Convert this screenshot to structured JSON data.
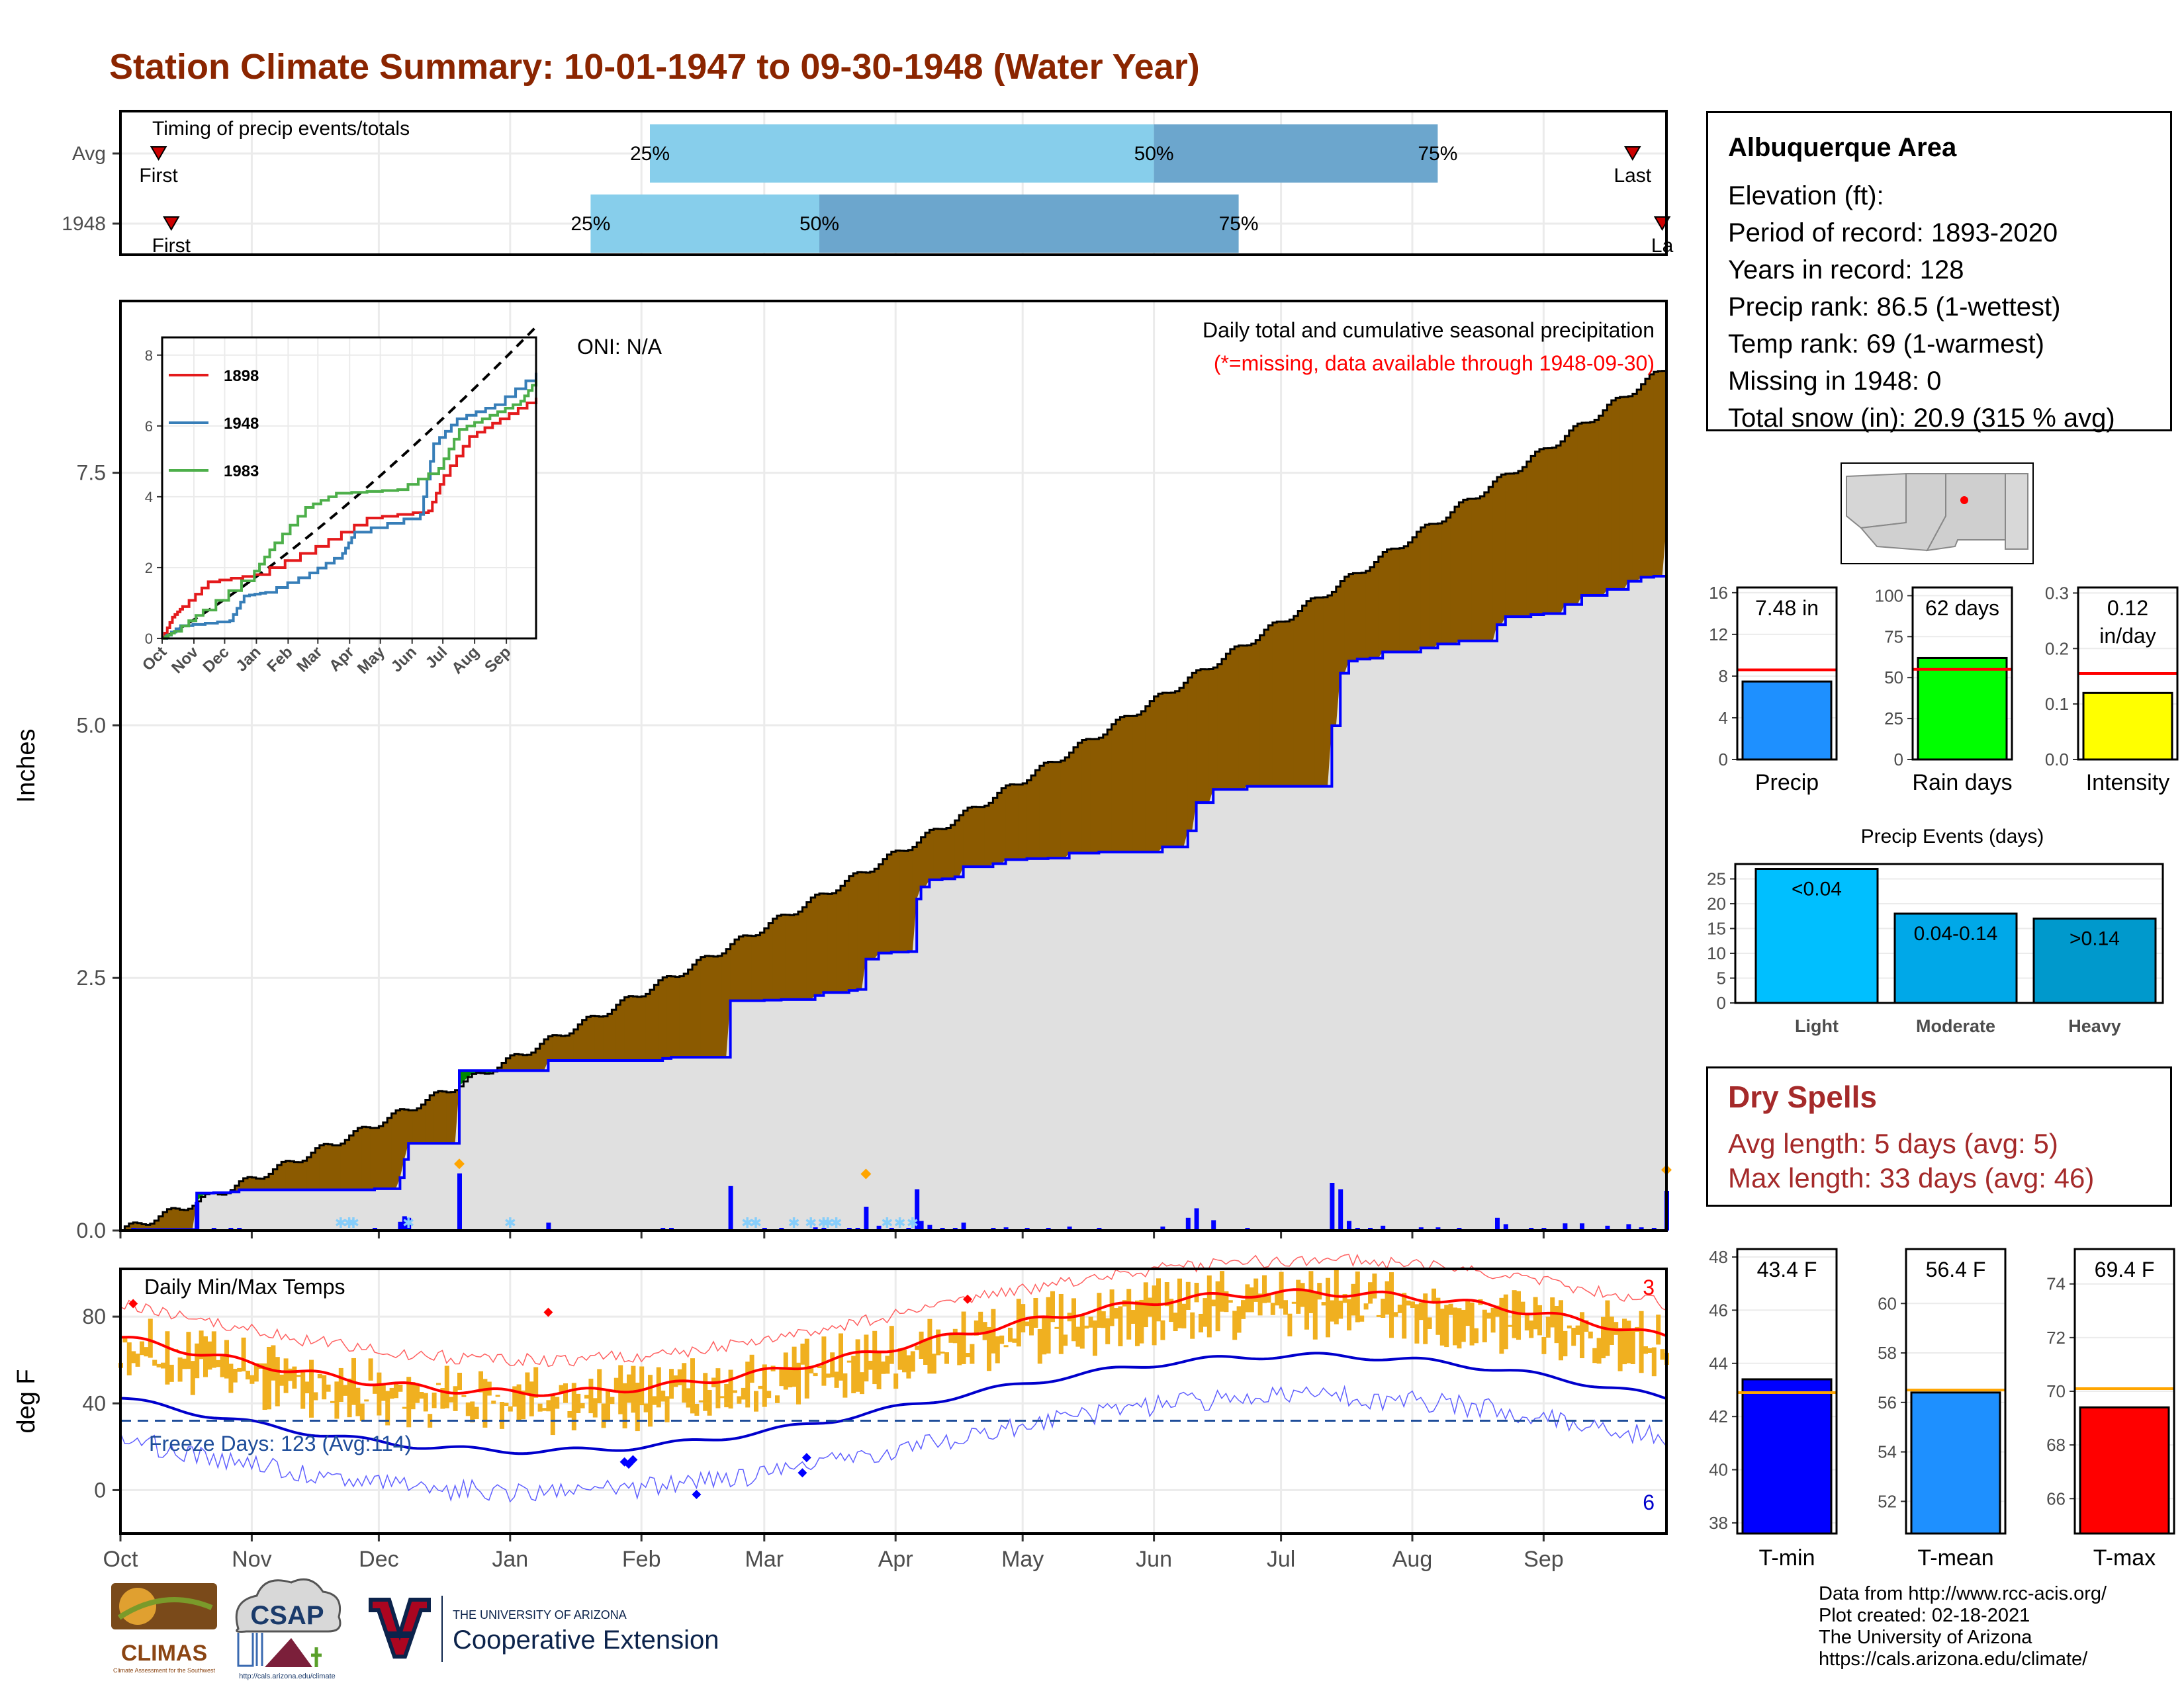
{
  "title": "Station Climate Summary: 10-01-1947 to 09-30-1948 (Water Year)",
  "timing": {
    "label": "Timing of precip events/totals",
    "rows": [
      {
        "name": "Avg",
        "first_label": "First",
        "last_label": "Last",
        "pct_25": "25%",
        "pct_50": "50%",
        "pct_75": "75%",
        "first_day": 9,
        "last_day": 357,
        "p25_day": 125,
        "p50_day": 244,
        "p75_day": 311
      },
      {
        "name": "1948",
        "first_label": "First",
        "last_label": "La",
        "pct_25": "25%",
        "pct_50": "50%",
        "pct_75": "75%",
        "first_day": 12,
        "last_day": 364,
        "p25_day": 111,
        "p50_day": 165,
        "p75_day": 264
      }
    ],
    "colors": {
      "outer": "#87ceeb",
      "inner": "#6ca6cd",
      "marker": "#cc0000"
    }
  },
  "precip": {
    "ylabel": "Inches",
    "oni": "ONI: N/A",
    "subtitle": "Daily total and cumulative seasonal precipitation",
    "missing_note": "(*=missing, data available through 1948-09-30)",
    "y_ticks": [
      "0.0",
      "2.5",
      "5.0",
      "7.5"
    ],
    "ylim": [
      0,
      9.2
    ],
    "colors": {
      "above": "#8b5a00",
      "below": "#008b00",
      "area": "#e0e0e0",
      "line": "#0000ff",
      "bars": "#0000ff"
    }
  },
  "inset": {
    "y_ticks": [
      "0",
      "2",
      "4",
      "6",
      "8"
    ],
    "x_ticks": [
      "Oct",
      "Nov",
      "Dec",
      "Jan",
      "Feb",
      "Mar",
      "Apr",
      "May",
      "Jun",
      "Jul",
      "Aug",
      "Sep"
    ],
    "ylim": [
      0,
      8.5
    ],
    "legend": [
      {
        "name": "1898",
        "color": "#e41a1c"
      },
      {
        "name": "1948",
        "color": "#377eb8"
      },
      {
        "name": "1983",
        "color": "#4daf4a"
      }
    ]
  },
  "temps": {
    "label": "Daily Min/Max Temps",
    "ylabel": "deg F",
    "y_ticks": [
      "0",
      "40",
      "80"
    ],
    "ylim": [
      -20,
      102
    ],
    "freeze": "Freeze Days: 123 (Avg:114)",
    "freeze_line": 32,
    "count_hot": "3",
    "count_cold": "6",
    "x_ticks": [
      "Oct",
      "Nov",
      "Dec",
      "Jan",
      "Feb",
      "Mar",
      "Apr",
      "May",
      "Jun",
      "Jul",
      "Aug",
      "Sep"
    ]
  },
  "info": {
    "heading": "Albuquerque Area",
    "lines": [
      "Elevation (ft):",
      "Period of record: 1893-2020",
      "Years in record: 128",
      "Precip rank: 86.5 (1-wettest)",
      "Temp rank: 69 (1-warmest)",
      "Missing in 1948: 0",
      "Total snow (in): 20.9 (315 % avg)"
    ]
  },
  "summary_bars": [
    {
      "name": "Precip",
      "value_label": "7.48 in",
      "value": 7.48,
      "avg": 8.6,
      "ymax": 16.5,
      "ticks": [
        "0",
        "4",
        "8",
        "12",
        "16"
      ],
      "tick_values": [
        0,
        4,
        8,
        12,
        16
      ],
      "color": "#1e90ff"
    },
    {
      "name": "Rain days",
      "value_label": "62 days",
      "value": 62,
      "avg": 55,
      "ymax": 105,
      "ticks": [
        "0",
        "25",
        "50",
        "75",
        "100"
      ],
      "tick_values": [
        0,
        25,
        50,
        75,
        100
      ],
      "color": "#00ff00"
    },
    {
      "name": "Intensity",
      "value_label": "0.12 in/day",
      "value_line1": "0.12",
      "value_line2": "in/day",
      "value": 0.12,
      "avg": 0.155,
      "ymax": 0.31,
      "ticks": [
        "0.0",
        "0.1",
        "0.2",
        "0.3"
      ],
      "tick_values": [
        0,
        0.1,
        0.2,
        0.3
      ],
      "color": "#ffff00"
    }
  ],
  "events": {
    "title": "Precip Events (days)",
    "ticks": [
      "0",
      "5",
      "10",
      "15",
      "20",
      "25"
    ],
    "ymax": 28,
    "bars": [
      {
        "category": "Light",
        "label": "<0.04",
        "value": 27,
        "color": "#00bfff"
      },
      {
        "category": "Moderate",
        "label": "0.04-0.14",
        "value": 18,
        "color": "#00a8e8"
      },
      {
        "category": "Heavy",
        "label": ">0.14",
        "value": 17,
        "color": "#0099cc"
      }
    ]
  },
  "dry_spells": {
    "heading": "Dry Spells",
    "avg_line": "Avg length: 5 days (avg: 5)",
    "max_line": "Max length: 33 days (avg: 46)"
  },
  "temp_bars": [
    {
      "name": "T-min",
      "value_label": "43.4 F",
      "value": 43.4,
      "avg": 42.9,
      "ymin": 37.6,
      "ymax": 48.3,
      "ticks": [
        "38",
        "40",
        "42",
        "44",
        "46",
        "48"
      ],
      "tick_values": [
        38,
        40,
        42,
        44,
        46,
        48
      ],
      "color": "#0000ff"
    },
    {
      "name": "T-mean",
      "value_label": "56.4 F",
      "value": 56.4,
      "avg": 56.5,
      "ymin": 50.7,
      "ymax": 62.2,
      "ticks": [
        "52",
        "54",
        "56",
        "58",
        "60"
      ],
      "tick_values": [
        52,
        54,
        56,
        58,
        60
      ],
      "color": "#1e90ff"
    },
    {
      "name": "T-max",
      "value_label": "69.4 F",
      "value": 69.4,
      "avg": 70.1,
      "ymin": 64.7,
      "ymax": 75.3,
      "ticks": [
        "66",
        "68",
        "70",
        "72",
        "74"
      ],
      "tick_values": [
        66,
        68,
        70,
        72,
        74
      ],
      "color": "#ff0000"
    }
  ],
  "logos": {
    "climas": "CLIMAS",
    "climas_sub": "Climate Assessment for the Southwest",
    "csap": "CSAP",
    "csap_url": "http://cals.arizona.edu/climate",
    "ua_top": "THE UNIVERSITY OF ARIZONA",
    "ua_bottom": "Cooperative Extension"
  },
  "footer": [
    "Data from http://www.rcc-acis.org/",
    "Plot created: 02-18-2021",
    "The University of Arizona",
    "https://cals.arizona.edu/climate/"
  ]
}
